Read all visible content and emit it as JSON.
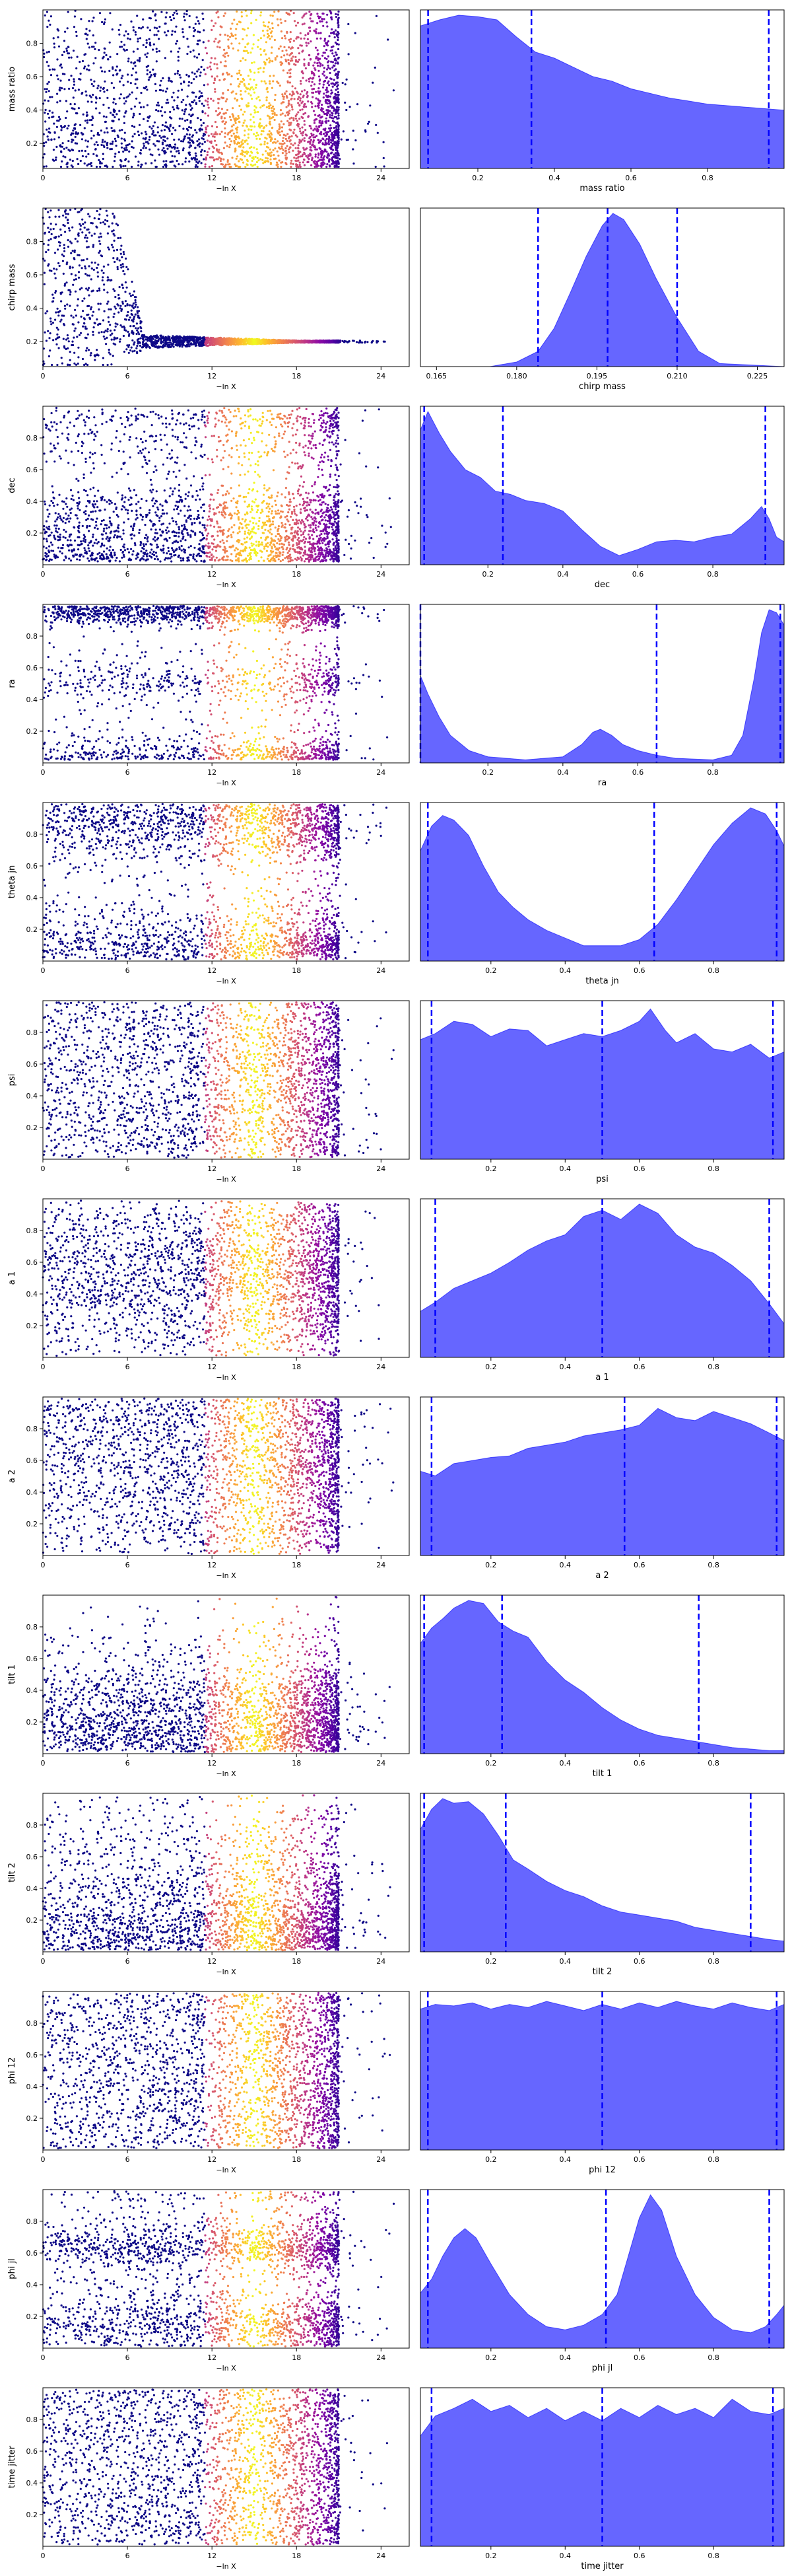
{
  "chart_data": {
    "type": "trace",
    "left_xlabel": "−ln X",
    "left_xticks": [
      "0",
      "6",
      "12",
      "18",
      "24"
    ],
    "left_xlim": [
      0,
      26
    ],
    "colormap": "plasma",
    "kde_color": "#0000ff",
    "quantile_color": "#0000ff",
    "panels": [
      {
        "name": "mass ratio",
        "left_yticks": [
          "0.2",
          "0.4",
          "0.6",
          "0.8"
        ],
        "left_ylim": [
          0.05,
          1.0
        ],
        "hist_xticks": [
          "0.2",
          "0.4",
          "0.6",
          "0.8"
        ],
        "hist_xlim": [
          0.05,
          1.0
        ],
        "quantiles": [
          0.07,
          0.34,
          0.96
        ],
        "kde": {
          "x": [
            0.05,
            0.1,
            0.15,
            0.2,
            0.25,
            0.3,
            0.35,
            0.4,
            0.45,
            0.5,
            0.55,
            0.6,
            0.65,
            0.7,
            0.75,
            0.8,
            0.85,
            0.9,
            0.95,
            1.0
          ],
          "y": [
            0.93,
            0.97,
            1.0,
            0.99,
            0.97,
            0.86,
            0.76,
            0.72,
            0.66,
            0.6,
            0.57,
            0.52,
            0.49,
            0.46,
            0.44,
            0.42,
            0.41,
            0.4,
            0.39,
            0.38
          ]
        }
      },
      {
        "name": "chirp mass",
        "left_yticks": [
          "0.2",
          "0.4",
          "0.6",
          "0.8"
        ],
        "left_ylim": [
          0.05,
          1.0
        ],
        "hist_xticks": [
          "0.165",
          "0.180",
          "0.195",
          "0.210",
          "0.225"
        ],
        "hist_xlim": [
          0.162,
          0.23
        ],
        "quantiles": [
          0.184,
          0.197,
          0.21
        ],
        "kde": {
          "x": [
            0.162,
            0.175,
            0.18,
            0.184,
            0.187,
            0.19,
            0.193,
            0.196,
            0.198,
            0.2,
            0.203,
            0.206,
            0.21,
            0.214,
            0.218,
            0.23
          ],
          "y": [
            0,
            0,
            0.03,
            0.1,
            0.25,
            0.48,
            0.72,
            0.92,
            1.0,
            0.96,
            0.8,
            0.58,
            0.32,
            0.1,
            0.02,
            0
          ]
        }
      },
      {
        "name": "dec",
        "left_yticks": [
          "0.2",
          "0.4",
          "0.6",
          "0.8"
        ],
        "left_ylim": [
          0.0,
          1.0
        ],
        "hist_xticks": [
          "0.2",
          "0.4",
          "0.6",
          "0.8"
        ],
        "hist_xlim": [
          0.02,
          0.99
        ],
        "quantiles": [
          0.03,
          0.24,
          0.94
        ],
        "kde": {
          "x": [
            0.02,
            0.04,
            0.07,
            0.1,
            0.14,
            0.18,
            0.22,
            0.26,
            0.3,
            0.35,
            0.4,
            0.45,
            0.5,
            0.55,
            0.6,
            0.65,
            0.7,
            0.75,
            0.8,
            0.85,
            0.9,
            0.93,
            0.95,
            0.97,
            0.99
          ],
          "y": [
            0.88,
            1.0,
            0.86,
            0.74,
            0.62,
            0.57,
            0.48,
            0.46,
            0.42,
            0.4,
            0.35,
            0.23,
            0.12,
            0.06,
            0.1,
            0.15,
            0.16,
            0.15,
            0.18,
            0.2,
            0.3,
            0.38,
            0.3,
            0.18,
            0.15
          ]
        }
      },
      {
        "name": "ra",
        "left_yticks": [
          "0.2",
          "0.4",
          "0.6",
          "0.8"
        ],
        "left_ylim": [
          0.0,
          1.0
        ],
        "hist_xticks": [
          "0.2",
          "0.4",
          "0.6",
          "0.8"
        ],
        "hist_xlim": [
          0.02,
          0.99
        ],
        "quantiles": [
          0.02,
          0.65,
          0.98
        ],
        "kde": {
          "x": [
            0.02,
            0.04,
            0.07,
            0.1,
            0.15,
            0.2,
            0.3,
            0.4,
            0.45,
            0.48,
            0.5,
            0.53,
            0.56,
            0.6,
            0.65,
            0.7,
            0.8,
            0.85,
            0.88,
            0.91,
            0.93,
            0.95,
            0.97,
            0.99
          ],
          "y": [
            0.57,
            0.45,
            0.3,
            0.18,
            0.08,
            0.04,
            0.02,
            0.04,
            0.12,
            0.2,
            0.22,
            0.18,
            0.12,
            0.08,
            0.05,
            0.03,
            0.02,
            0.05,
            0.18,
            0.55,
            0.85,
            1.0,
            0.98,
            0.9
          ]
        }
      },
      {
        "name": "theta jn",
        "left_yticks": [
          "0.2",
          "0.4",
          "0.6",
          "0.8"
        ],
        "left_ylim": [
          0.0,
          1.0
        ],
        "hist_xticks": [
          "0.2",
          "0.4",
          "0.6",
          "0.8"
        ],
        "hist_xlim": [
          0.01,
          0.99
        ],
        "quantiles": [
          0.03,
          0.64,
          0.97
        ],
        "kde": {
          "x": [
            0.01,
            0.04,
            0.07,
            0.1,
            0.14,
            0.18,
            0.22,
            0.26,
            0.3,
            0.35,
            0.4,
            0.45,
            0.5,
            0.55,
            0.6,
            0.65,
            0.7,
            0.75,
            0.8,
            0.85,
            0.9,
            0.94,
            0.97,
            0.99
          ],
          "y": [
            0.72,
            0.88,
            0.95,
            0.92,
            0.82,
            0.62,
            0.45,
            0.35,
            0.27,
            0.2,
            0.15,
            0.1,
            0.1,
            0.1,
            0.14,
            0.24,
            0.4,
            0.58,
            0.76,
            0.9,
            1.0,
            0.96,
            0.85,
            0.75
          ]
        }
      },
      {
        "name": "psi",
        "left_yticks": [
          "0.2",
          "0.4",
          "0.6",
          "0.8"
        ],
        "left_ylim": [
          0.0,
          1.0
        ],
        "hist_xticks": [
          "0.2",
          "0.4",
          "0.6",
          "0.8"
        ],
        "hist_xlim": [
          0.01,
          0.99
        ],
        "quantiles": [
          0.04,
          0.5,
          0.96
        ],
        "kde": {
          "x": [
            0.01,
            0.05,
            0.1,
            0.15,
            0.2,
            0.25,
            0.3,
            0.35,
            0.4,
            0.45,
            0.5,
            0.55,
            0.6,
            0.63,
            0.67,
            0.7,
            0.75,
            0.8,
            0.85,
            0.9,
            0.95,
            0.99
          ],
          "y": [
            0.78,
            0.82,
            0.9,
            0.88,
            0.8,
            0.85,
            0.84,
            0.74,
            0.78,
            0.82,
            0.8,
            0.84,
            0.9,
            0.98,
            0.84,
            0.76,
            0.82,
            0.72,
            0.7,
            0.75,
            0.66,
            0.7
          ]
        }
      },
      {
        "name": "a 1",
        "left_yticks": [
          "0.2",
          "0.4",
          "0.6",
          "0.8"
        ],
        "left_ylim": [
          0.0,
          1.0
        ],
        "hist_xticks": [
          "0.2",
          "0.4",
          "0.6",
          "0.8"
        ],
        "hist_xlim": [
          0.01,
          0.99
        ],
        "quantiles": [
          0.05,
          0.5,
          0.95
        ],
        "kde": {
          "x": [
            0.01,
            0.05,
            0.1,
            0.15,
            0.2,
            0.25,
            0.3,
            0.35,
            0.4,
            0.45,
            0.5,
            0.55,
            0.6,
            0.65,
            0.7,
            0.75,
            0.8,
            0.85,
            0.9,
            0.95,
            0.99
          ],
          "y": [
            0.3,
            0.36,
            0.45,
            0.5,
            0.55,
            0.62,
            0.7,
            0.76,
            0.8,
            0.92,
            0.96,
            0.9,
            1.0,
            0.94,
            0.8,
            0.72,
            0.68,
            0.6,
            0.5,
            0.35,
            0.22
          ]
        }
      },
      {
        "name": "a 2",
        "left_yticks": [
          "0.2",
          "0.4",
          "0.6",
          "0.8"
        ],
        "left_ylim": [
          0.0,
          1.0
        ],
        "hist_xticks": [
          "0.2",
          "0.4",
          "0.6",
          "0.8"
        ],
        "hist_xlim": [
          0.01,
          0.99
        ],
        "quantiles": [
          0.04,
          0.56,
          0.97
        ],
        "kde": {
          "x": [
            0.01,
            0.05,
            0.1,
            0.15,
            0.2,
            0.25,
            0.3,
            0.35,
            0.4,
            0.45,
            0.5,
            0.55,
            0.6,
            0.65,
            0.7,
            0.75,
            0.8,
            0.85,
            0.9,
            0.95,
            0.99
          ],
          "y": [
            0.55,
            0.52,
            0.6,
            0.62,
            0.64,
            0.65,
            0.7,
            0.72,
            0.74,
            0.78,
            0.8,
            0.82,
            0.85,
            0.96,
            0.9,
            0.88,
            0.94,
            0.9,
            0.86,
            0.8,
            0.75
          ]
        }
      },
      {
        "name": "tilt 1",
        "left_yticks": [
          "0.2",
          "0.4",
          "0.6",
          "0.8"
        ],
        "left_ylim": [
          0.0,
          1.0
        ],
        "hist_xticks": [
          "0.2",
          "0.4",
          "0.6",
          "0.8"
        ],
        "hist_xlim": [
          0.01,
          0.99
        ],
        "quantiles": [
          0.02,
          0.23,
          0.76
        ],
        "kde": {
          "x": [
            0.01,
            0.04,
            0.07,
            0.1,
            0.14,
            0.18,
            0.22,
            0.26,
            0.3,
            0.35,
            0.4,
            0.45,
            0.5,
            0.55,
            0.6,
            0.65,
            0.7,
            0.75,
            0.8,
            0.85,
            0.9,
            0.95,
            0.99
          ],
          "y": [
            0.72,
            0.82,
            0.88,
            0.95,
            1.0,
            0.98,
            0.86,
            0.8,
            0.76,
            0.6,
            0.48,
            0.4,
            0.3,
            0.22,
            0.16,
            0.12,
            0.1,
            0.08,
            0.06,
            0.04,
            0.03,
            0.02,
            0.02
          ]
        }
      },
      {
        "name": "tilt 2",
        "left_yticks": [
          "0.2",
          "0.4",
          "0.6",
          "0.8"
        ],
        "left_ylim": [
          0.0,
          1.0
        ],
        "hist_xticks": [
          "0.2",
          "0.4",
          "0.6",
          "0.8"
        ],
        "hist_xlim": [
          0.01,
          0.99
        ],
        "quantiles": [
          0.02,
          0.24,
          0.9
        ],
        "kde": {
          "x": [
            0.01,
            0.04,
            0.07,
            0.1,
            0.14,
            0.18,
            0.22,
            0.26,
            0.3,
            0.35,
            0.4,
            0.45,
            0.5,
            0.55,
            0.6,
            0.65,
            0.7,
            0.75,
            0.8,
            0.85,
            0.9,
            0.95,
            0.99
          ],
          "y": [
            0.8,
            0.93,
            1.0,
            0.97,
            0.98,
            0.9,
            0.76,
            0.6,
            0.54,
            0.46,
            0.4,
            0.36,
            0.3,
            0.26,
            0.24,
            0.22,
            0.2,
            0.16,
            0.14,
            0.12,
            0.1,
            0.08,
            0.07
          ]
        }
      },
      {
        "name": "phi 12",
        "left_yticks": [
          "0.2",
          "0.4",
          "0.6",
          "0.8"
        ],
        "left_ylim": [
          0.0,
          1.0
        ],
        "hist_xticks": [
          "0.2",
          "0.4",
          "0.6",
          "0.8"
        ],
        "hist_xlim": [
          0.01,
          0.99
        ],
        "quantiles": [
          0.03,
          0.5,
          0.97
        ],
        "kde": {
          "x": [
            0.01,
            0.05,
            0.1,
            0.15,
            0.2,
            0.25,
            0.3,
            0.35,
            0.4,
            0.45,
            0.5,
            0.55,
            0.6,
            0.65,
            0.7,
            0.75,
            0.8,
            0.85,
            0.9,
            0.95,
            0.99
          ],
          "y": [
            0.92,
            0.95,
            0.94,
            0.96,
            0.92,
            0.95,
            0.93,
            0.97,
            0.94,
            0.91,
            0.95,
            0.92,
            0.96,
            0.93,
            0.97,
            0.94,
            0.92,
            0.96,
            0.93,
            0.91,
            0.95
          ]
        }
      },
      {
        "name": "phi jl",
        "left_yticks": [
          "0.2",
          "0.4",
          "0.6",
          "0.8"
        ],
        "left_ylim": [
          0.0,
          1.0
        ],
        "hist_xticks": [
          "0.2",
          "0.4",
          "0.6",
          "0.8"
        ],
        "hist_xlim": [
          0.01,
          0.99
        ],
        "quantiles": [
          0.03,
          0.51,
          0.95
        ],
        "kde": {
          "x": [
            0.01,
            0.04,
            0.07,
            0.1,
            0.13,
            0.16,
            0.2,
            0.25,
            0.3,
            0.35,
            0.4,
            0.45,
            0.5,
            0.54,
            0.57,
            0.6,
            0.63,
            0.66,
            0.7,
            0.75,
            0.8,
            0.85,
            0.9,
            0.94,
            0.97,
            0.99
          ],
          "y": [
            0.36,
            0.45,
            0.6,
            0.72,
            0.78,
            0.72,
            0.55,
            0.35,
            0.22,
            0.14,
            0.12,
            0.15,
            0.22,
            0.35,
            0.6,
            0.85,
            1.0,
            0.9,
            0.6,
            0.35,
            0.2,
            0.12,
            0.1,
            0.14,
            0.22,
            0.28
          ]
        }
      },
      {
        "name": "time jitter",
        "left_yticks": [
          "0.2",
          "0.4",
          "0.6",
          "0.8"
        ],
        "left_ylim": [
          0.0,
          1.0
        ],
        "hist_xticks": [
          "0.2",
          "0.4",
          "0.6",
          "0.8"
        ],
        "hist_xlim": [
          0.01,
          0.99
        ],
        "quantiles": [
          0.04,
          0.5,
          0.96
        ],
        "kde": {
          "x": [
            0.01,
            0.05,
            0.1,
            0.15,
            0.2,
            0.25,
            0.3,
            0.35,
            0.4,
            0.45,
            0.5,
            0.55,
            0.6,
            0.65,
            0.7,
            0.75,
            0.8,
            0.85,
            0.9,
            0.95,
            0.99
          ],
          "y": [
            0.72,
            0.85,
            0.9,
            0.96,
            0.88,
            0.92,
            0.84,
            0.9,
            0.82,
            0.88,
            0.82,
            0.9,
            0.84,
            0.92,
            0.86,
            0.9,
            0.84,
            0.96,
            0.88,
            0.86,
            0.9
          ]
        }
      }
    ]
  }
}
